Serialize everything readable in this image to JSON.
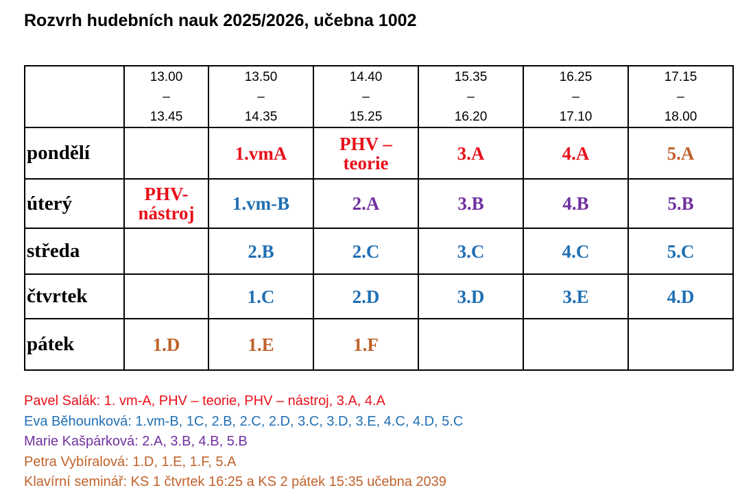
{
  "header": {
    "title": "Rozvrh hudebních nauk 2025/2026, učebna 1002"
  },
  "table": {
    "times": [
      {
        "from": "13.00",
        "sep": "–",
        "to": "13.45"
      },
      {
        "from": "13.50",
        "sep": "–",
        "to": "14.35"
      },
      {
        "from": "14.40",
        "sep": "–",
        "to": "15.25"
      },
      {
        "from": "15.35",
        "sep": "–",
        "to": "16.20"
      },
      {
        "from": "16.25",
        "sep": "–",
        "to": "17.10"
      },
      {
        "from": "17.15",
        "sep": "–",
        "to": "18.00"
      }
    ],
    "rows": [
      {
        "day": "pondělí",
        "lessons": [
          "1.vmA",
          "PHV – teorie",
          "3.A",
          "4.A",
          "5.A"
        ]
      },
      {
        "day": "úterý",
        "lessons": [
          "PHV-nástroj",
          "1.vm-B",
          "2.A",
          "3.B",
          "4.B",
          "5.B"
        ]
      },
      {
        "day": "středa",
        "lessons": [
          "2.B",
          "2.C",
          "3.C",
          "4.C",
          "5.C"
        ]
      },
      {
        "day": "čtvrtek",
        "lessons": [
          "1.C",
          "2.D",
          "3.D",
          "3.E",
          "4.D"
        ]
      },
      {
        "day": "pátek",
        "lessons": [
          "1.D",
          "1.E",
          "1.F"
        ]
      }
    ]
  },
  "notes": [
    "Pavel Salák: 1. vm-A, PHV – teorie, PHV – nástroj, 3.A, 4.A",
    "Eva Běhounková: 1.vm-B, 1C, 2.B, 2.C, 2.D, 3.C, 3.D, 3.E, 4.C, 4.D, 5.C",
    "Marie Kašpárková: 2.A, 3.B, 4.B, 5.B",
    "Petra Vybíralová: 1.D, 1.E, 1.F, 5.A",
    "Klavírní seminář: KS 1 čtvrtek 16:25 a KS 2 pátek 15:35 učebna 2039"
  ]
}
